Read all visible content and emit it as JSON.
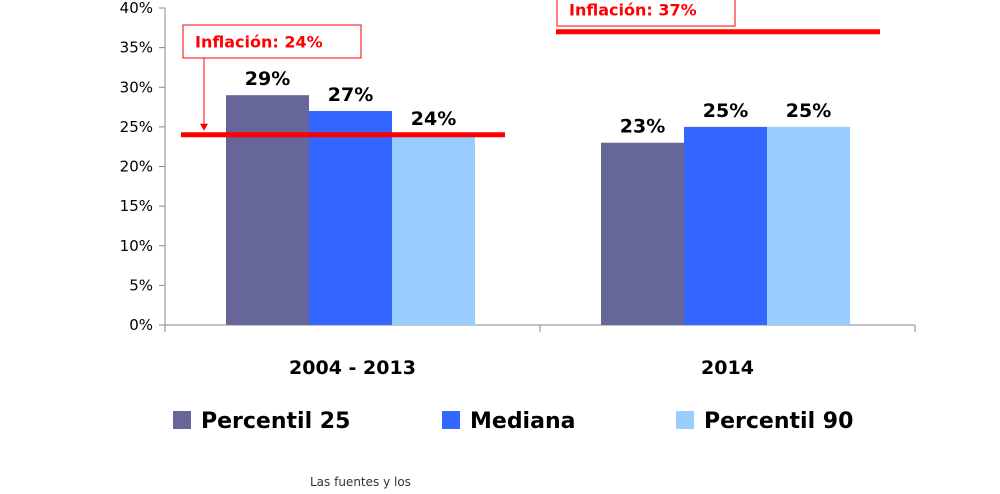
{
  "chart_data": {
    "type": "bar",
    "categories": [
      "2004 - 2013",
      "2014"
    ],
    "series": [
      {
        "name": "Percentil 25",
        "values": [
          29,
          23
        ],
        "labels": [
          "29%",
          "23%"
        ],
        "color": "#666699"
      },
      {
        "name": "Mediana",
        "values": [
          27,
          25
        ],
        "labels": [
          "27%",
          "25%"
        ],
        "color": "#3366ff"
      },
      {
        "name": "Percentil 90",
        "values": [
          24,
          25
        ],
        "labels": [
          "24%",
          "25%"
        ],
        "color": "#99ccff"
      }
    ],
    "yticks": [
      "0%",
      "5%",
      "10%",
      "15%",
      "20%",
      "25%",
      "30%",
      "35%",
      "40%"
    ],
    "ylim": [
      0,
      40
    ],
    "inflation_lines": [
      {
        "label": "Inflación: 24%",
        "value": 24,
        "category_index": 0,
        "color": "#ff0000"
      },
      {
        "label": "Inflación: 37%",
        "value": 37,
        "category_index": 1,
        "color": "#ff0000"
      }
    ],
    "legend_position": "bottom",
    "grid": false
  },
  "footer": {
    "note": "Las fuentes y los"
  }
}
